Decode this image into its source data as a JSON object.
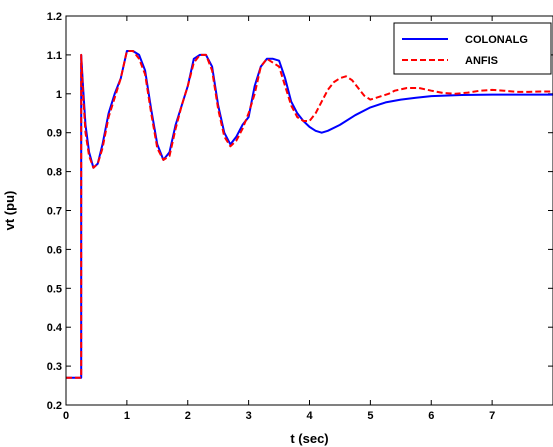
{
  "chart_data": {
    "type": "line",
    "title": "",
    "xlabel": "t (sec)",
    "ylabel": "vt (pu)",
    "xlim": [
      0,
      8
    ],
    "ylim": [
      0.2,
      1.2
    ],
    "xticks": [
      0,
      1,
      2,
      3,
      4,
      5,
      6,
      7
    ],
    "yticks": [
      0.2,
      0.3,
      0.4,
      0.5,
      0.6,
      0.7,
      0.8,
      0.9,
      1,
      1.1,
      1.2
    ],
    "xtick_labels": [
      "0",
      "1",
      "2",
      "3",
      "4",
      "5",
      "6",
      "7"
    ],
    "ytick_labels": [
      "0.2",
      "0.3",
      "0.4",
      "0.5",
      "0.6",
      "0.7",
      "0.8",
      "0.9",
      "1",
      "1.1",
      "1.2"
    ],
    "grid": false,
    "legend_position": "top-right",
    "series": [
      {
        "name": "COLONALG",
        "color": "#0000ff",
        "style": "solid",
        "x": [
          0,
          0.25,
          0.25,
          0.28,
          0.32,
          0.38,
          0.45,
          0.52,
          0.6,
          0.7,
          0.8,
          0.9,
          1.0,
          1.1,
          1.2,
          1.3,
          1.4,
          1.5,
          1.6,
          1.7,
          1.8,
          1.9,
          2.0,
          2.1,
          2.2,
          2.3,
          2.4,
          2.5,
          2.6,
          2.7,
          2.8,
          2.9,
          3.0,
          3.1,
          3.2,
          3.3,
          3.4,
          3.5,
          3.6,
          3.7,
          3.8,
          3.9,
          4.0,
          4.1,
          4.2,
          4.3,
          4.5,
          4.75,
          5.0,
          5.25,
          5.5,
          5.75,
          6.0,
          6.5,
          7.0,
          7.5,
          8.0
        ],
        "y": [
          0.27,
          0.27,
          1.1,
          1.02,
          0.92,
          0.85,
          0.81,
          0.82,
          0.87,
          0.95,
          1.0,
          1.04,
          1.11,
          1.11,
          1.1,
          1.06,
          0.96,
          0.87,
          0.83,
          0.85,
          0.92,
          0.97,
          1.02,
          1.09,
          1.1,
          1.1,
          1.07,
          0.97,
          0.9,
          0.87,
          0.89,
          0.92,
          0.94,
          1.02,
          1.07,
          1.09,
          1.09,
          1.085,
          1.04,
          0.98,
          0.95,
          0.93,
          0.915,
          0.905,
          0.9,
          0.905,
          0.92,
          0.945,
          0.965,
          0.978,
          0.985,
          0.99,
          0.994,
          0.997,
          0.998,
          0.998,
          0.998
        ]
      },
      {
        "name": "ANFIS",
        "color": "#ff0000",
        "style": "dashed",
        "x": [
          0,
          0.25,
          0.25,
          0.28,
          0.32,
          0.38,
          0.45,
          0.52,
          0.6,
          0.7,
          0.8,
          0.9,
          1.0,
          1.1,
          1.2,
          1.3,
          1.4,
          1.5,
          1.6,
          1.7,
          1.8,
          1.9,
          2.0,
          2.1,
          2.2,
          2.3,
          2.4,
          2.5,
          2.6,
          2.7,
          2.8,
          2.9,
          3.0,
          3.1,
          3.2,
          3.3,
          3.4,
          3.5,
          3.6,
          3.7,
          3.8,
          3.9,
          4.0,
          4.1,
          4.2,
          4.3,
          4.4,
          4.5,
          4.6,
          4.7,
          4.8,
          4.9,
          5.0,
          5.1,
          5.2,
          5.3,
          5.4,
          5.6,
          5.8,
          6.0,
          6.2,
          6.4,
          6.6,
          6.8,
          7.0,
          7.2,
          7.4,
          7.6,
          7.8,
          8.0
        ],
        "y": [
          0.27,
          0.27,
          1.1,
          1.0,
          0.9,
          0.84,
          0.81,
          0.82,
          0.86,
          0.94,
          0.99,
          1.04,
          1.11,
          1.11,
          1.09,
          1.05,
          0.95,
          0.86,
          0.83,
          0.84,
          0.91,
          0.97,
          1.02,
          1.08,
          1.1,
          1.1,
          1.06,
          0.96,
          0.89,
          0.865,
          0.88,
          0.91,
          0.95,
          1.0,
          1.07,
          1.09,
          1.08,
          1.07,
          1.02,
          0.97,
          0.94,
          0.93,
          0.93,
          0.95,
          0.98,
          1.01,
          1.03,
          1.04,
          1.045,
          1.035,
          1.015,
          0.995,
          0.985,
          0.99,
          0.995,
          1.0,
          1.008,
          1.015,
          1.015,
          1.008,
          1.002,
          1.0,
          1.003,
          1.008,
          1.01,
          1.008,
          1.005,
          1.005,
          1.006,
          1.006
        ]
      }
    ]
  }
}
